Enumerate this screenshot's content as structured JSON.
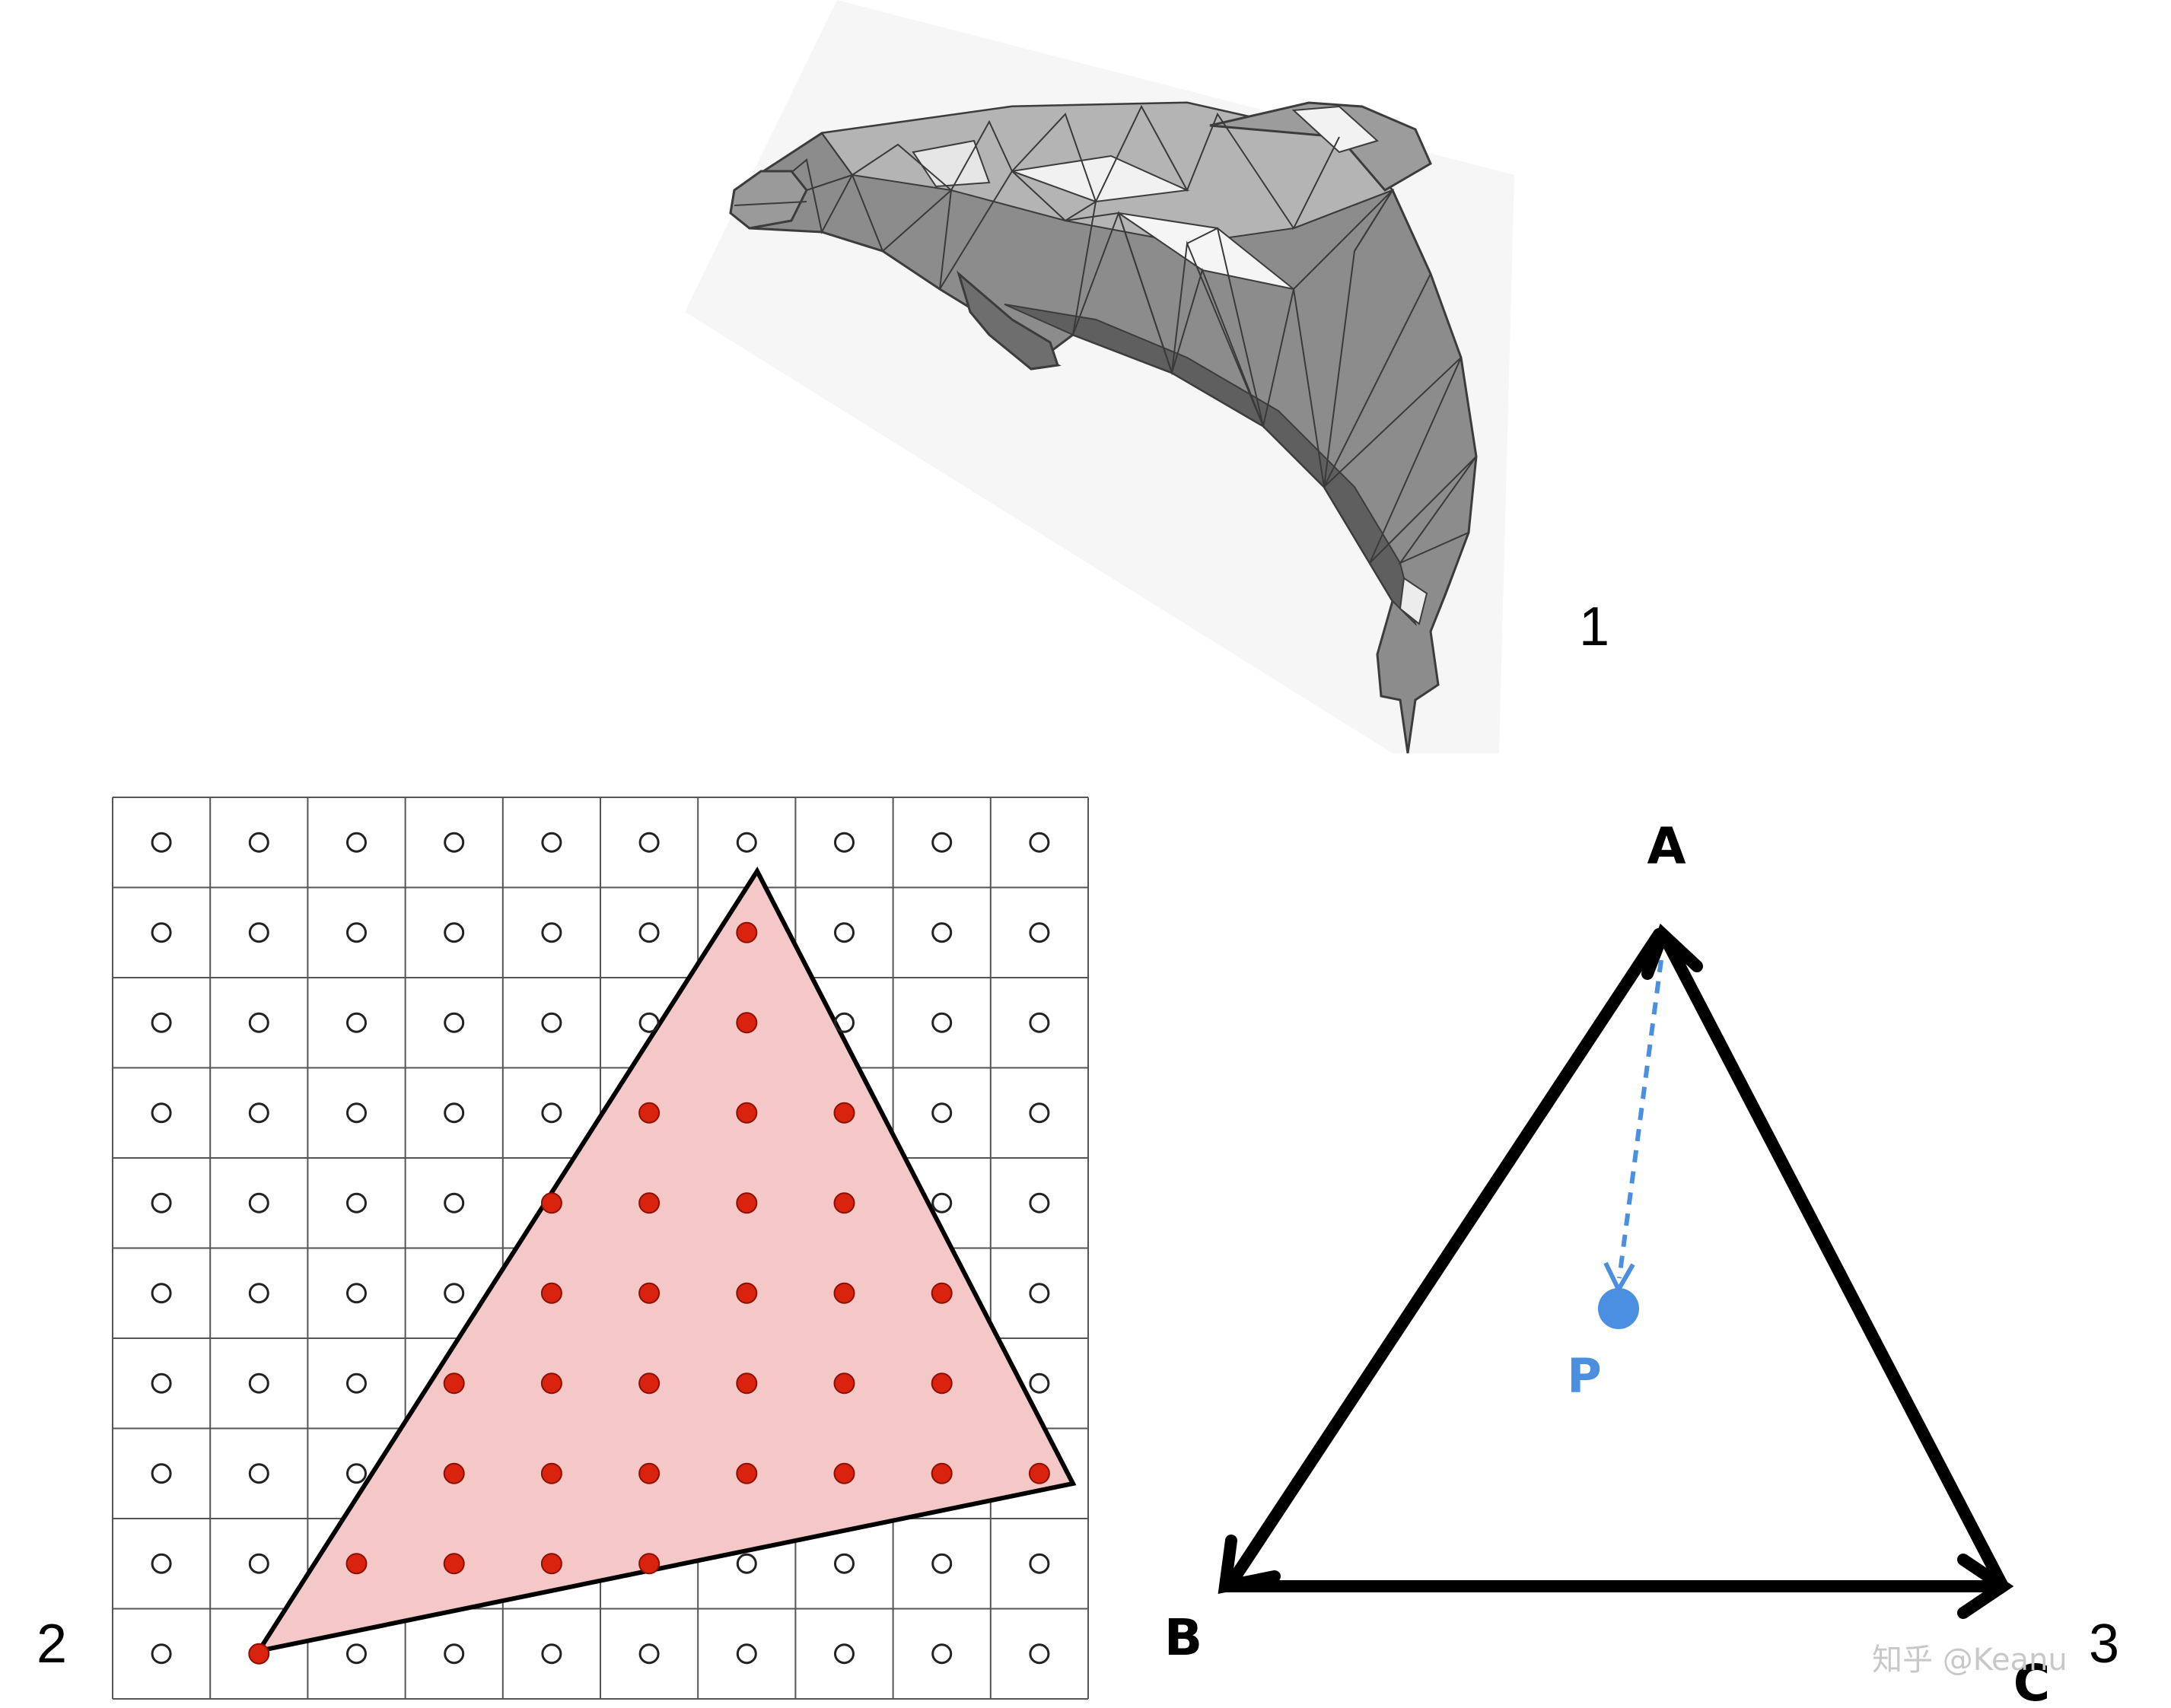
{
  "panels": {
    "mesh_number": "1",
    "raster_number": "2",
    "vector_number": "3"
  },
  "raster": {
    "columns": 10,
    "rows": 10,
    "covered_samples": [
      [
        6,
        1
      ],
      [
        6,
        2
      ],
      [
        5,
        3
      ],
      [
        6,
        3
      ],
      [
        7,
        3
      ],
      [
        4,
        4
      ],
      [
        5,
        4
      ],
      [
        6,
        4
      ],
      [
        7,
        4
      ],
      [
        4,
        5
      ],
      [
        5,
        5
      ],
      [
        6,
        5
      ],
      [
        7,
        5
      ],
      [
        8,
        5
      ],
      [
        3,
        6
      ],
      [
        4,
        6
      ],
      [
        5,
        6
      ],
      [
        6,
        6
      ],
      [
        7,
        6
      ],
      [
        8,
        6
      ],
      [
        3,
        7
      ],
      [
        4,
        7
      ],
      [
        5,
        7
      ],
      [
        6,
        7
      ],
      [
        7,
        7
      ],
      [
        8,
        7
      ],
      [
        9,
        7
      ],
      [
        2,
        8
      ],
      [
        3,
        8
      ],
      [
        4,
        8
      ],
      [
        5,
        8
      ],
      [
        1,
        9
      ]
    ],
    "colors": {
      "grid": "#555555",
      "fill": "#f4c8c6",
      "covered": "#d9230f",
      "empty_ring": "#222222",
      "edge": "#000000"
    }
  },
  "vector_diagram": {
    "vertex_a": "A",
    "vertex_b": "B",
    "vertex_c": "C",
    "point_label": "P",
    "colors": {
      "edges": "#000000",
      "point": "#4a8fe0"
    }
  },
  "watermark": "知乎 @Keanu",
  "mesh_icon": "low-poly-dolphin-mesh"
}
